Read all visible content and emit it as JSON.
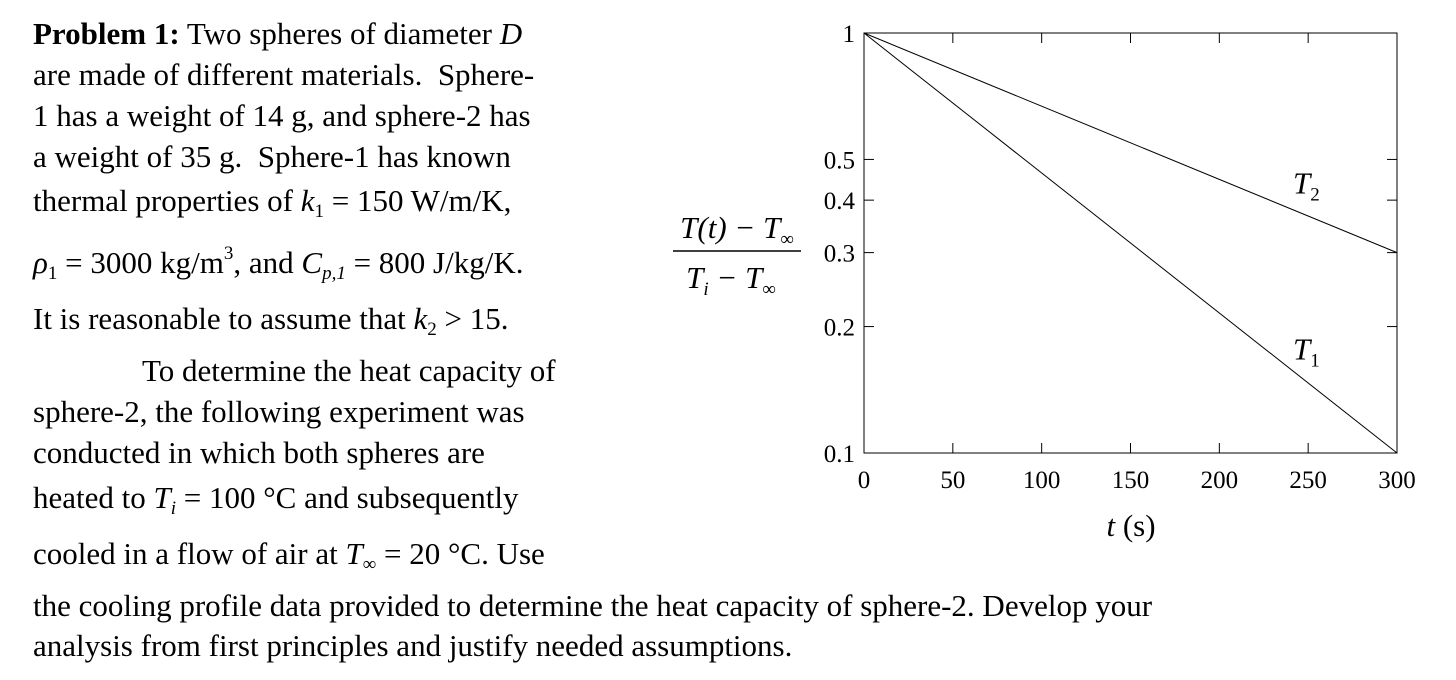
{
  "problem": {
    "lines": [
      [
        "Problem 1:",
        " Two spheres of diameter ",
        "D"
      ],
      [
        "are made of different materials.  Sphere-"
      ],
      [
        "1 has a weight of 14 g, and sphere-2 has"
      ],
      [
        "a weight of 35 g.  Sphere-1 has known"
      ],
      [
        "thermal properties of ",
        "k",
        "1",
        " = 150 W/m/K,"
      ],
      [
        "ρ",
        "1",
        " = 3000 kg/m",
        "3",
        ", and ",
        "C",
        "p,1",
        " = 800 J/kg/K."
      ],
      [
        "It is reasonable to assume that ",
        "k",
        "2",
        " > 15."
      ],
      [
        "To determine the heat capacity of"
      ],
      [
        "sphere-2, the following experiment was"
      ],
      [
        "conducted in which both spheres are"
      ],
      [
        "heated to ",
        "T",
        "i",
        " = 100 °C and subsequently"
      ],
      [
        "cooled in a flow of air at ",
        "T",
        "∞",
        " = 20 °C. Use"
      ],
      [
        "the cooling profile data provided to determine the heat capacity of sphere-2. Develop your"
      ],
      [
        "analysis from first principles and justify needed assumptions."
      ]
    ]
  },
  "chart_data": {
    "type": "line",
    "xlabel": [
      "t",
      " (s)"
    ],
    "ylabel": {
      "numerator": [
        "T",
        "(t) − T",
        "∞"
      ],
      "denominator": [
        "T",
        "i",
        " − T",
        "∞"
      ]
    },
    "x": [
      0,
      300
    ],
    "series": [
      {
        "name": "T",
        "name_subscript": "1",
        "color": "#000000",
        "values": [
          1,
          0.1
        ]
      },
      {
        "name": "T",
        "name_subscript": "2",
        "color": "#000000",
        "values": [
          1,
          0.3
        ]
      }
    ],
    "xlim": [
      0,
      300
    ],
    "ylim": [
      0.1,
      1
    ],
    "xticks": [
      0,
      50,
      100,
      150,
      200,
      250,
      300
    ],
    "yticks": [
      0.1,
      0.2,
      0.3,
      0.4,
      0.5,
      1
    ],
    "yscale": "log",
    "grid": false
  }
}
